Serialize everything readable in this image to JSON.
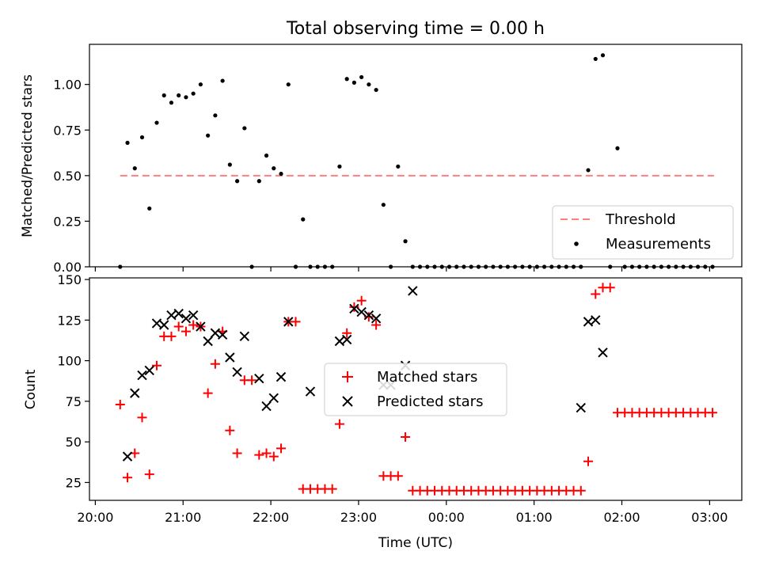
{
  "figure": {
    "title": "Total observing time = 0.00 h",
    "xlabel": "Time (UTC)"
  },
  "chart_data": [
    {
      "type": "scatter",
      "ylabel": "Matched/Predicted stars",
      "ylim": [
        0,
        1.22
      ],
      "yticks": [
        "0.00",
        "0.25",
        "0.50",
        "0.75",
        "1.00"
      ],
      "ytick_values": [
        0,
        0.25,
        0.5,
        0.75,
        1.0
      ],
      "threshold": {
        "name": "Threshold",
        "value": 0.5,
        "x_range": [
          "20:17",
          "03:03"
        ],
        "color": "#ff7f7f",
        "style": "dashed"
      },
      "series": [
        {
          "name": "Measurements",
          "color": "#000000",
          "x": [
            "20:17",
            "20:22",
            "20:27",
            "20:32",
            "20:37",
            "20:42",
            "20:47",
            "20:52",
            "20:57",
            "21:02",
            "21:07",
            "21:12",
            "21:17",
            "21:22",
            "21:27",
            "21:32",
            "21:37",
            "21:42",
            "21:47",
            "21:52",
            "21:57",
            "22:02",
            "22:07",
            "22:12",
            "22:17",
            "22:22",
            "22:27",
            "22:32",
            "22:37",
            "22:42",
            "22:47",
            "22:52",
            "22:57",
            "23:02",
            "23:07",
            "23:12",
            "23:17",
            "23:22",
            "23:27",
            "23:32",
            "23:37",
            "23:42",
            "23:47",
            "23:52",
            "23:57",
            "00:02",
            "00:07",
            "00:12",
            "00:17",
            "00:22",
            "00:27",
            "00:32",
            "00:37",
            "00:42",
            "00:47",
            "00:52",
            "00:57",
            "01:02",
            "01:07",
            "01:12",
            "01:17",
            "01:22",
            "01:27",
            "01:32",
            "01:37",
            "01:42",
            "01:47",
            "01:52",
            "01:57",
            "02:02",
            "02:07",
            "02:12",
            "02:17",
            "02:22",
            "02:27",
            "02:32",
            "02:37",
            "02:42",
            "02:47",
            "02:52",
            "02:57",
            "03:02"
          ],
          "y": [
            0,
            0.68,
            0.54,
            0.71,
            0.32,
            0.79,
            0.94,
            0.9,
            0.94,
            0.93,
            0.95,
            1.0,
            0.72,
            0.83,
            1.02,
            0.56,
            0.47,
            0.76,
            0,
            0.47,
            0.61,
            0.54,
            0.51,
            1.0,
            0,
            0.26,
            0,
            0,
            0,
            0,
            0.55,
            1.03,
            1.01,
            1.04,
            1.0,
            0.97,
            0.34,
            0,
            0.55,
            0.14,
            0,
            0,
            0,
            0,
            0,
            0,
            0,
            0,
            0,
            0,
            0,
            0,
            0,
            0,
            0,
            0,
            0,
            0,
            0,
            0,
            0,
            0,
            0,
            0,
            0.53,
            1.14,
            1.16,
            0,
            0.65,
            0,
            0,
            0,
            0,
            0,
            0,
            0,
            0,
            0,
            0,
            0,
            0,
            0
          ]
        }
      ],
      "legend": {
        "position": "lower-right"
      }
    },
    {
      "type": "scatter",
      "ylabel": "Count",
      "ylim": [
        14,
        151
      ],
      "yticks": [
        "25",
        "50",
        "75",
        "100",
        "125",
        "150"
      ],
      "ytick_values": [
        25,
        50,
        75,
        100,
        125,
        150
      ],
      "series": [
        {
          "name": "Matched stars",
          "color": "#ff0000",
          "marker": "plus",
          "x": [
            "20:17",
            "20:22",
            "20:27",
            "20:32",
            "20:37",
            "20:42",
            "20:47",
            "20:52",
            "20:57",
            "21:02",
            "21:07",
            "21:12",
            "21:17",
            "21:22",
            "21:27",
            "21:32",
            "21:37",
            "21:42",
            "21:47",
            "21:52",
            "21:57",
            "22:02",
            "22:07",
            "22:12",
            "22:17",
            "22:22",
            "22:27",
            "22:32",
            "22:37",
            "22:42",
            "22:47",
            "22:52",
            "22:57",
            "23:02",
            "23:07",
            "23:12",
            "23:17",
            "23:22",
            "23:27",
            "23:32",
            "23:37",
            "23:42",
            "23:47",
            "23:52",
            "23:57",
            "00:02",
            "00:07",
            "00:12",
            "00:17",
            "00:22",
            "00:27",
            "00:32",
            "00:37",
            "00:42",
            "00:47",
            "00:52",
            "00:57",
            "01:02",
            "01:07",
            "01:12",
            "01:17",
            "01:22",
            "01:27",
            "01:32",
            "01:37",
            "01:42",
            "01:47",
            "01:52",
            "01:57",
            "02:02",
            "02:07",
            "02:12",
            "02:17",
            "02:22",
            "02:27",
            "02:32",
            "02:37",
            "02:42",
            "02:47",
            "02:52",
            "02:57",
            "03:02"
          ],
          "y": [
            73,
            28,
            43,
            65,
            30,
            97,
            115,
            115,
            121,
            118,
            122,
            121,
            80,
            98,
            118,
            57,
            43,
            88,
            88,
            42,
            43,
            41,
            46,
            124,
            124,
            21,
            21,
            21,
            21,
            21,
            61,
            117,
            133,
            137,
            127,
            122,
            29,
            29,
            29,
            53,
            20,
            20,
            20,
            20,
            20,
            20,
            20,
            20,
            20,
            20,
            20,
            20,
            20,
            20,
            20,
            20,
            20,
            20,
            20,
            20,
            20,
            20,
            20,
            20,
            38,
            141,
            145,
            145,
            68,
            68,
            68,
            68,
            68,
            68,
            68,
            68,
            68,
            68,
            68,
            68,
            68,
            68
          ]
        },
        {
          "name": "Predicted stars",
          "color": "#000000",
          "marker": "x",
          "x": [
            "20:22",
            "20:27",
            "20:32",
            "20:37",
            "20:42",
            "20:47",
            "20:52",
            "20:57",
            "21:02",
            "21:07",
            "21:12",
            "21:17",
            "21:22",
            "21:27",
            "21:32",
            "21:37",
            "21:42",
            "21:52",
            "21:57",
            "22:02",
            "22:07",
            "22:12",
            "22:27",
            "22:47",
            "22:52",
            "22:57",
            "23:02",
            "23:07",
            "23:12",
            "23:17",
            "23:22",
            "23:32",
            "23:37",
            "01:32",
            "01:37",
            "01:42",
            "01:47"
          ],
          "y": [
            41,
            80,
            91,
            94,
            123,
            122,
            128,
            129,
            126,
            128,
            121,
            112,
            117,
            116,
            102,
            93,
            115,
            89,
            72,
            77,
            90,
            124,
            81,
            112,
            113,
            132,
            130,
            128,
            126,
            85,
            85,
            97,
            143,
            71,
            124,
            125,
            105
          ]
        }
      ],
      "legend": {
        "position": "center"
      }
    }
  ],
  "x_axis": {
    "ticks": [
      "20:00",
      "21:00",
      "22:00",
      "23:00",
      "00:00",
      "01:00",
      "02:00",
      "03:00"
    ],
    "range": [
      "19:56",
      "03:22"
    ]
  }
}
